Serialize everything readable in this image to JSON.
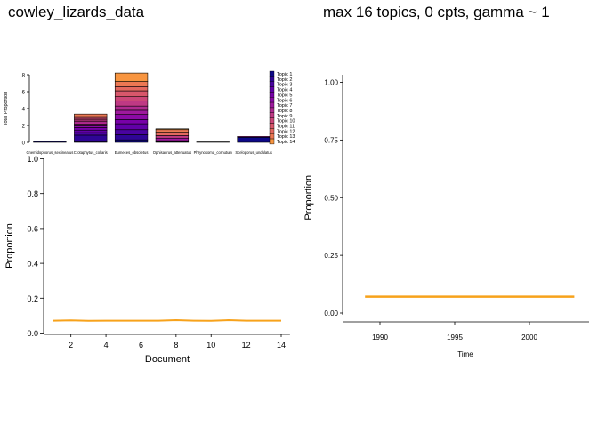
{
  "titles": {
    "left": "cowley_lizards_data",
    "right": "max 16 topics, 0 cpts, gamma ~ 1"
  },
  "colors": {
    "line": "#F7A21B",
    "axis": "#000000"
  },
  "chart_data": [
    {
      "id": "topic-bar-chart",
      "type": "bar",
      "stacked": true,
      "title": "",
      "xlabel": "",
      "ylabel": "Total Proportion",
      "ylim": [
        0,
        8
      ],
      "yticks": [
        0,
        2,
        4,
        6,
        8
      ],
      "categories": [
        "Cnemidophorus_sexlineatus",
        "Crotaphytus_collaris",
        "Eumeces_obsoletus",
        "Ophisaurus_attenuatus",
        "Phrynosoma_cornutum",
        "Sceloporus_undulatus"
      ],
      "legend_position": "right",
      "series": [
        {
          "name": "Topic 1",
          "color": "#0D0887",
          "values": [
            0.1,
            0.05,
            0.3,
            0.05,
            0.05,
            0.6
          ]
        },
        {
          "name": "Topic 2",
          "color": "#2F0596",
          "values": [
            0,
            0.8,
            0.6,
            0.05,
            0,
            0
          ]
        },
        {
          "name": "Topic 3",
          "color": "#4903A0",
          "values": [
            0,
            0.3,
            0.6,
            0.05,
            0,
            0
          ]
        },
        {
          "name": "Topic 4",
          "color": "#6100A7",
          "values": [
            0,
            0.3,
            0.7,
            0,
            0,
            0
          ]
        },
        {
          "name": "Topic 5",
          "color": "#7701A8",
          "values": [
            0,
            0.3,
            0.5,
            0,
            0,
            0
          ]
        },
        {
          "name": "Topic 6",
          "color": "#8B0AA5",
          "values": [
            0,
            0.2,
            0.6,
            0.05,
            0,
            0
          ]
        },
        {
          "name": "Topic 7",
          "color": "#9E199D",
          "values": [
            0,
            0.2,
            0.5,
            0.3,
            0,
            0
          ]
        },
        {
          "name": "Topic 8",
          "color": "#B02A90",
          "values": [
            0,
            0.3,
            0.5,
            0,
            0,
            0.1
          ]
        },
        {
          "name": "Topic 9",
          "color": "#BF3984",
          "values": [
            0,
            0.2,
            0.6,
            0.3,
            0,
            0
          ]
        },
        {
          "name": "Topic 10",
          "color": "#CC4778",
          "values": [
            0,
            0.2,
            0.5,
            0,
            0,
            0
          ]
        },
        {
          "name": "Topic 11",
          "color": "#D8576B",
          "values": [
            0,
            0.2,
            0.7,
            0,
            0,
            0
          ]
        },
        {
          "name": "Topic 12",
          "color": "#E3685F",
          "values": [
            0,
            0,
            0.5,
            0.4,
            0,
            0
          ]
        },
        {
          "name": "Topic 13",
          "color": "#EC7853",
          "values": [
            0,
            0.3,
            0.6,
            0.3,
            0,
            0
          ]
        },
        {
          "name": "Topic 14",
          "color": "#F89540",
          "values": [
            0,
            0,
            1.0,
            0.1,
            0,
            0
          ]
        }
      ]
    },
    {
      "id": "document-proportion-chart",
      "type": "line",
      "title": "",
      "xlabel": "Document",
      "ylabel": "Proportion",
      "xlim": [
        0.5,
        14.5
      ],
      "ylim": [
        0,
        1
      ],
      "xticks": [
        2,
        4,
        6,
        8,
        10,
        12,
        14
      ],
      "yticks": [
        0.0,
        0.2,
        0.4,
        0.6,
        0.8,
        1.0
      ],
      "series": [
        {
          "color": "#F7A21B",
          "x": [
            1,
            2,
            3,
            4,
            5,
            6,
            7,
            8,
            9,
            10,
            11,
            12,
            13,
            14
          ],
          "y": [
            0.071,
            0.073,
            0.07,
            0.071,
            0.071,
            0.071,
            0.071,
            0.074,
            0.071,
            0.07,
            0.074,
            0.071,
            0.071,
            0.071
          ]
        }
      ]
    },
    {
      "id": "time-proportion-chart",
      "type": "line",
      "title": "",
      "xlabel": "Time",
      "ylabel": "Proportion",
      "xlim": [
        1987.5,
        2005
      ],
      "ylim": [
        0,
        1
      ],
      "xticks": [
        1990,
        1995,
        2000
      ],
      "yticks": [
        0.0,
        0.25,
        0.5,
        0.75,
        1.0
      ],
      "series": [
        {
          "color": "#F7A21B",
          "x": [
            1989,
            2003
          ],
          "y": [
            0.071,
            0.071
          ]
        }
      ]
    }
  ]
}
